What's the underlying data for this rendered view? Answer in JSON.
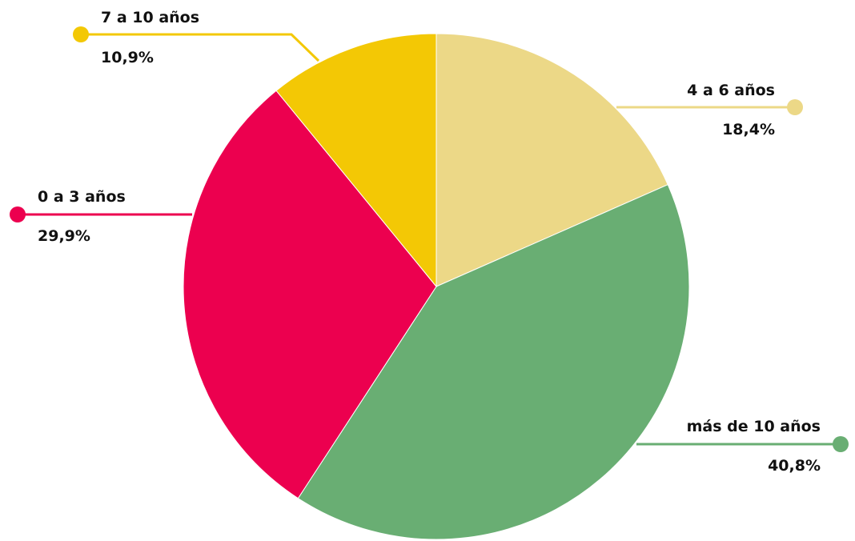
{
  "chart_data": {
    "type": "pie",
    "title": "",
    "legend": "none",
    "slices": [
      {
        "label": "4 a 6 años",
        "value": 18.4,
        "value_label": "18,4%",
        "color": "#ecd887"
      },
      {
        "label": "más de 10 años",
        "value": 40.8,
        "value_label": "40,8%",
        "color": "#69ae73"
      },
      {
        "label": "0 a 3 años",
        "value": 29.9,
        "value_label": "29,9%",
        "color": "#ec004f"
      },
      {
        "label": "7 a 10 años",
        "value": 10.9,
        "value_label": "10,9%",
        "color": "#f3c805"
      }
    ]
  }
}
